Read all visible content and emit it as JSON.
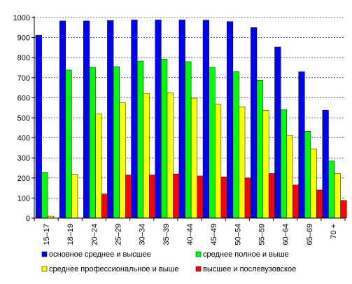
{
  "chart_data": {
    "type": "bar",
    "categories": [
      "15–17",
      "18–19",
      "20–24",
      "25–29",
      "30–34",
      "35–39",
      "40–44",
      "45–49",
      "50–54",
      "55–59",
      "60–64",
      "65–69",
      "70 +"
    ],
    "series": [
      {
        "name": "основное среднее и высшее",
        "color": "#0000ff",
        "values": [
          912,
          983,
          983,
          985,
          988,
          988,
          988,
          987,
          980,
          950,
          853,
          730,
          538
        ]
      },
      {
        "name": "среднее полное и выше",
        "color": "#00ff00",
        "values": [
          228,
          738,
          752,
          755,
          783,
          792,
          780,
          752,
          731,
          688,
          540,
          433,
          285
        ]
      },
      {
        "name": "среднее профессиональное и выше",
        "color": "#ffff00",
        "values": [
          10,
          218,
          520,
          575,
          622,
          625,
          598,
          568,
          555,
          537,
          412,
          345,
          222
        ]
      },
      {
        "name": "высшее и послевузовское",
        "color": "#ff0000",
        "values": [
          0,
          0,
          120,
          215,
          215,
          220,
          210,
          205,
          200,
          222,
          165,
          140,
          88
        ]
      }
    ],
    "ylim": [
      0,
      1000
    ],
    "yticks": [
      0,
      100,
      200,
      300,
      400,
      500,
      600,
      700,
      800,
      900,
      1000
    ],
    "grid": "horizontal dashed",
    "legend_placement": "bottom"
  }
}
